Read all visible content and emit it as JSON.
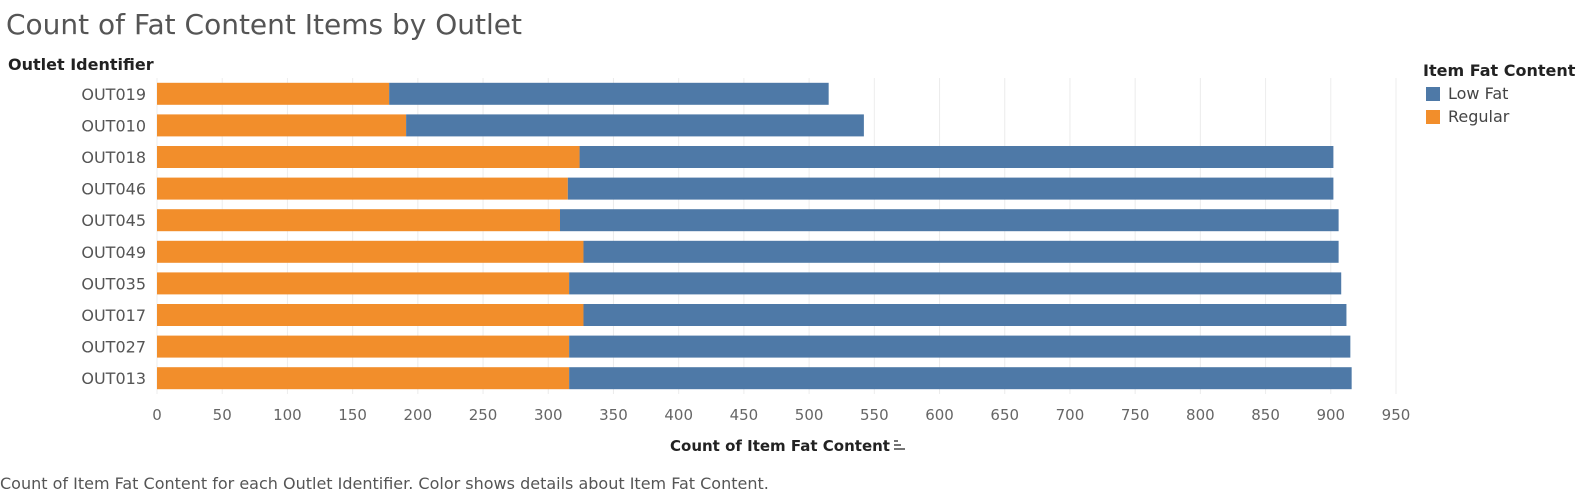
{
  "chart_data": {
    "type": "bar",
    "orientation": "horizontal",
    "stacked": true,
    "title": "Count of Fat Content Items by Outlet",
    "row_header": "Outlet Identifier",
    "xlabel": "Count of Item Fat Content",
    "xlim": [
      0,
      950
    ],
    "xticks": [
      0,
      50,
      100,
      150,
      200,
      250,
      300,
      350,
      400,
      450,
      500,
      550,
      600,
      650,
      700,
      750,
      800,
      850,
      900,
      950
    ],
    "gridlines": true,
    "legend_title": "Item Fat Content",
    "legend_position": "top-right",
    "categories": [
      "OUT019",
      "OUT010",
      "OUT018",
      "OUT046",
      "OUT045",
      "OUT049",
      "OUT035",
      "OUT017",
      "OUT027",
      "OUT013"
    ],
    "series": [
      {
        "name": "Regular",
        "color": "#F28E2B",
        "values": [
          178,
          191,
          324,
          315,
          309,
          327,
          316,
          327,
          316,
          316
        ]
      },
      {
        "name": "Low Fat",
        "color": "#4E79A7",
        "values": [
          337,
          351,
          578,
          587,
          597,
          579,
          592,
          585,
          599,
          600
        ]
      }
    ],
    "legend": [
      {
        "name": "Low Fat",
        "color": "#4E79A7"
      },
      {
        "name": "Regular",
        "color": "#F28E2B"
      }
    ],
    "caption": "Count of Item Fat Content for each Outlet Identifier.  Color shows details about Item Fat Content.",
    "sort_icon": "sort-descending-icon"
  }
}
